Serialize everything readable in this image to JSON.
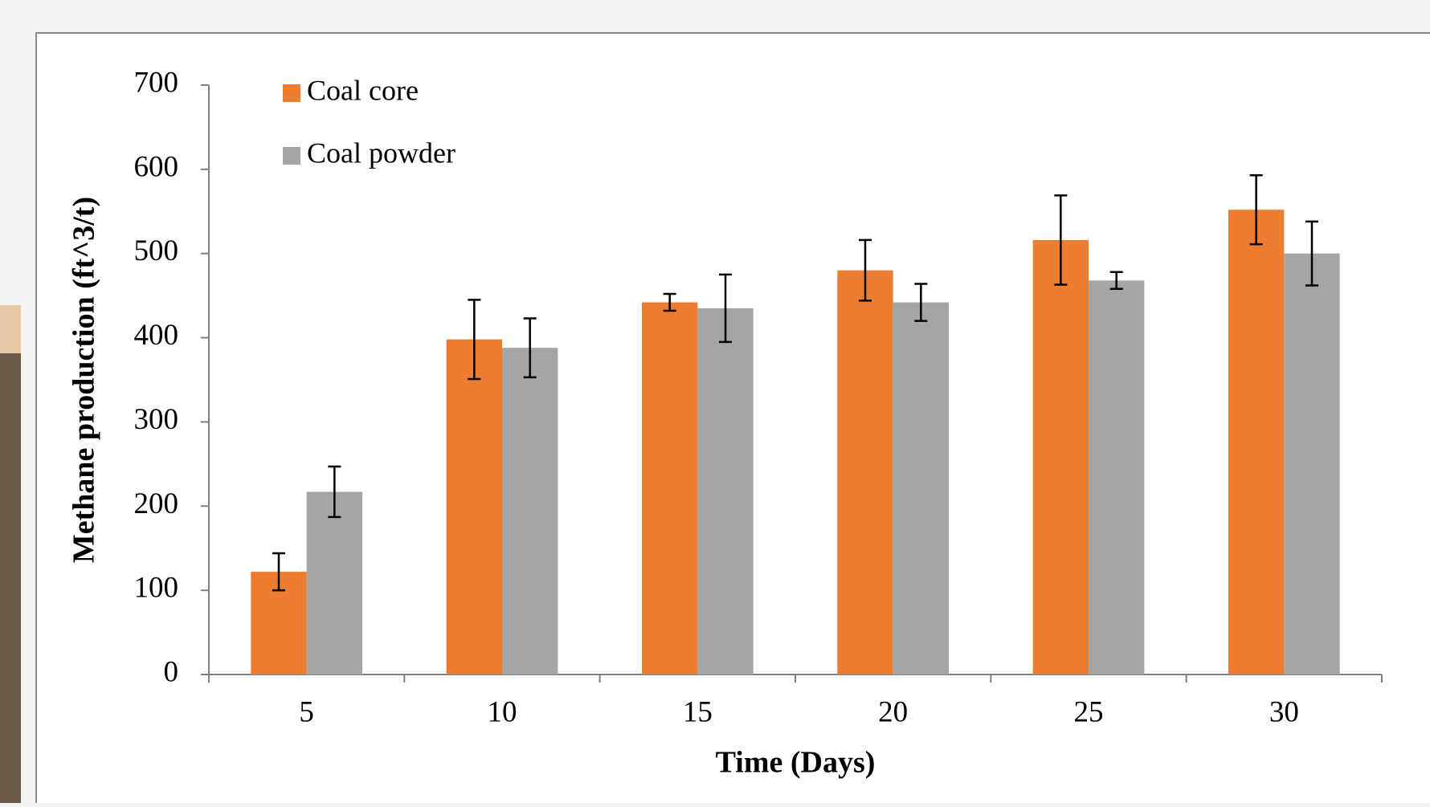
{
  "chart_data": {
    "type": "bar",
    "x_label": "Time (Days)",
    "y_label": "Methane production (ft^3/t)",
    "categories": [
      "5",
      "10",
      "15",
      "20",
      "25",
      "30"
    ],
    "series": [
      {
        "name": "Coal core",
        "color": "#ed7d31",
        "values": [
          122,
          398,
          442,
          480,
          516,
          552
        ],
        "errors": [
          22,
          47,
          10,
          36,
          53,
          41
        ]
      },
      {
        "name": "Coal powder",
        "color": "#a5a5a5",
        "values": [
          217,
          388,
          435,
          442,
          468,
          500
        ],
        "errors": [
          30,
          35,
          40,
          22,
          10,
          38
        ]
      }
    ],
    "ylim": [
      0,
      700
    ],
    "yticks": [
      0,
      100,
      200,
      300,
      400,
      500,
      600,
      700
    ],
    "legend": "upper left"
  }
}
